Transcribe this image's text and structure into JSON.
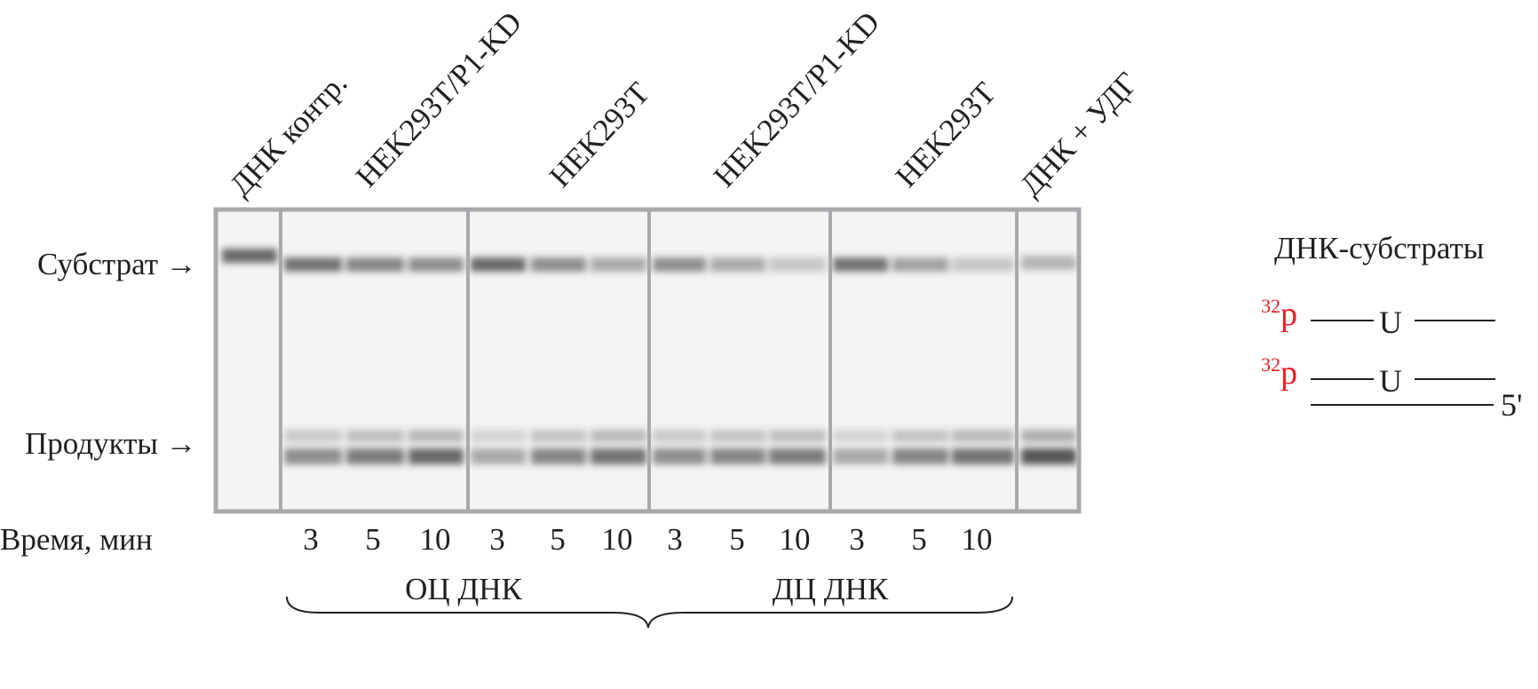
{
  "lane_labels": [
    "ДНК контр.",
    "HEK293T/P1-KD",
    "HEK293T",
    "HEK293T/P1-KD",
    "HEK293T",
    "ДНК + УДГ"
  ],
  "band_labels": {
    "substrate": "Субстрат",
    "products": "Продукты"
  },
  "time_label": "Время, мин",
  "times": [
    "3",
    "5",
    "10",
    "3",
    "5",
    "10",
    "3",
    "5",
    "10",
    "3",
    "5",
    "10"
  ],
  "groups": [
    "ОЦ ДНК",
    "ДЦ ДНК"
  ],
  "legend": {
    "title": "ДНК-субстраты",
    "label_32": "32",
    "label_p": "p",
    "label_u": "U",
    "label_5prime": "5'"
  },
  "colors": {
    "label_red": "#ed1c24",
    "gel_frame": "#a7a9ac"
  },
  "band_intensity": {
    "substrate": [
      0.75,
      0.7,
      0.6,
      0.55,
      0.75,
      0.55,
      0.4,
      0.55,
      0.4,
      0.25,
      0.7,
      0.45,
      0.25,
      0.35
    ],
    "products": [
      0.0,
      0.55,
      0.65,
      0.75,
      0.4,
      0.6,
      0.7,
      0.55,
      0.6,
      0.65,
      0.4,
      0.6,
      0.7,
      0.85
    ]
  }
}
